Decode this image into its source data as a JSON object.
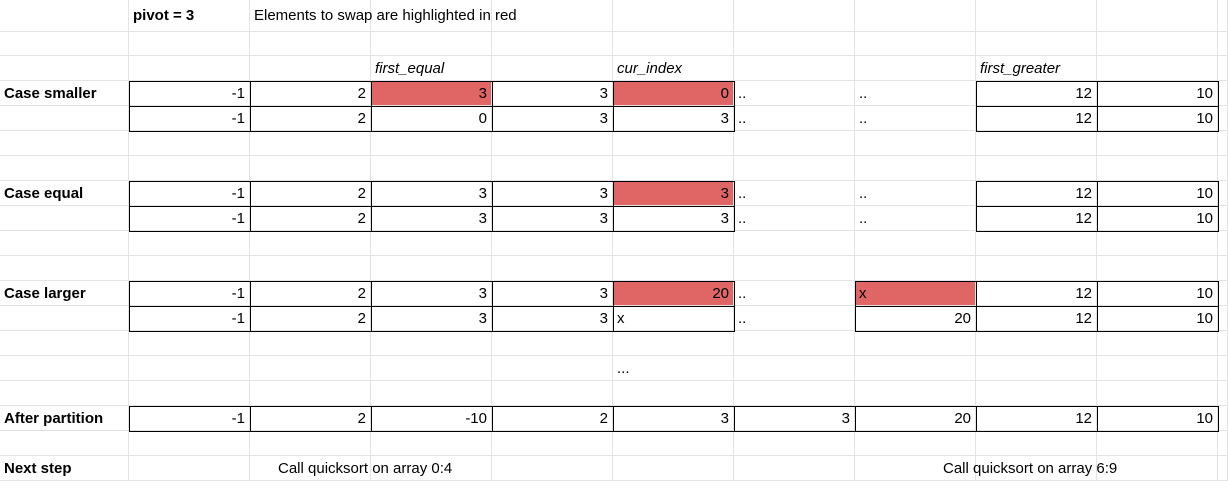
{
  "header": {
    "pivot_label": "pivot = 3",
    "note": "Elements to swap are highlighted in red"
  },
  "markers": {
    "first_equal": "first_equal",
    "cur_index": "cur_index",
    "first_greater": "first_greater"
  },
  "highlight_color": "#e06666",
  "cases": [
    {
      "label": "Case smaller",
      "rows": [
        [
          "-1",
          "2",
          "3",
          "3",
          "0",
          "..",
          "",
          "..",
          "12",
          "10"
        ],
        [
          "-1",
          "2",
          "0",
          "3",
          "3",
          "..",
          "",
          "..",
          "12",
          "10"
        ]
      ]
    },
    {
      "label": "Case equal",
      "rows": [
        [
          "-1",
          "2",
          "3",
          "3",
          "3",
          "..",
          "",
          "..",
          "12",
          "10"
        ],
        [
          "-1",
          "2",
          "3",
          "3",
          "3",
          "..",
          "",
          "..",
          "12",
          "10"
        ]
      ]
    },
    {
      "label": "Case larger",
      "rows": [
        [
          "-1",
          "2",
          "3",
          "3",
          "20",
          "..",
          "",
          "x",
          "12",
          "10"
        ],
        [
          "-1",
          "2",
          "3",
          "3",
          "x",
          "..",
          "",
          "20",
          "12",
          "10"
        ]
      ]
    }
  ],
  "ellipsis": "...",
  "after_partition": {
    "label": "After partition",
    "values": [
      "-1",
      "2",
      "-10",
      "2",
      "3",
      "3",
      "20",
      "12",
      "10"
    ]
  },
  "next_step": {
    "label": "Next step",
    "left_call": "Call quicksort on array 0:4",
    "right_call": "Call quicksort on array 6:9"
  }
}
